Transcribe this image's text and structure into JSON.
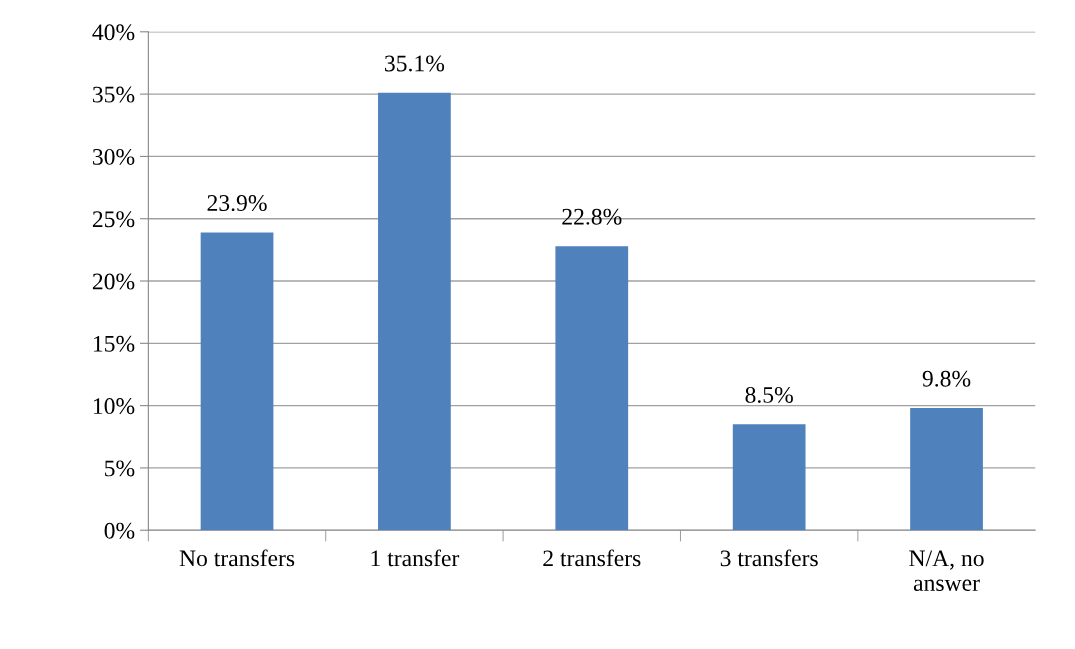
{
  "chart_data": {
    "type": "bar",
    "categories": [
      "No transfers",
      "1 transfer",
      "2 transfers",
      "3 transfers",
      "N/A, no\nanswer"
    ],
    "values": [
      23.9,
      35.1,
      22.8,
      8.5,
      9.8
    ],
    "value_labels": [
      "23.9%",
      "35.1%",
      "22.8%",
      "8.5%",
      "9.8%"
    ],
    "color": "#4f81bd",
    "ylim": [
      0,
      40
    ],
    "yticks": [
      {
        "value": 0,
        "label": "0%"
      },
      {
        "value": 5,
        "label": "5%"
      },
      {
        "value": 10,
        "label": "10%"
      },
      {
        "value": 15,
        "label": "15%"
      },
      {
        "value": 20,
        "label": "20%"
      },
      {
        "value": 25,
        "label": "25%"
      },
      {
        "value": 30,
        "label": "30%"
      },
      {
        "value": 35,
        "label": "35%"
      },
      {
        "value": 40,
        "label": "40%"
      }
    ],
    "grid": "y",
    "legend": false
  }
}
